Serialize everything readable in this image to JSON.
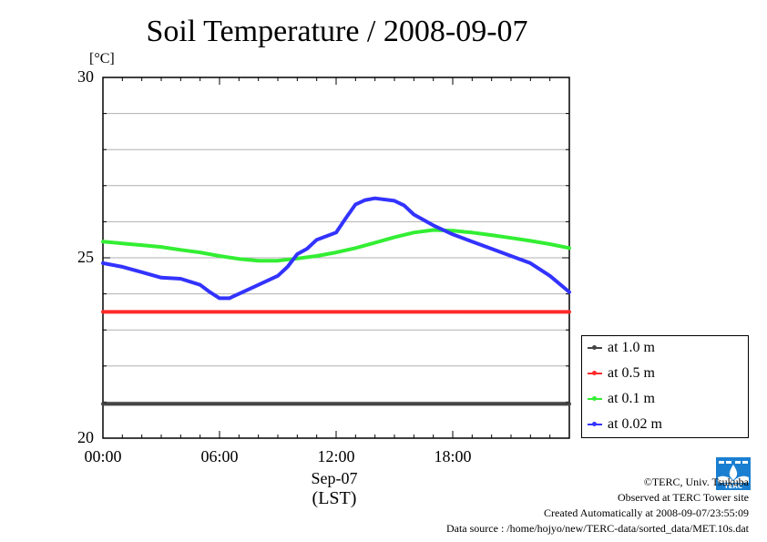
{
  "chart_data": {
    "type": "line",
    "title": "Soil Temperature / 2008-09-07",
    "ylabel": "[°C]",
    "ylim": [
      20,
      30
    ],
    "yticks": [
      "30",
      "25",
      "20"
    ],
    "x_ticks": [
      "00:00",
      "06:00",
      "12:00",
      "18:00"
    ],
    "x_date": "Sep-07",
    "x_zone": "(LST)",
    "xlim_hours": [
      0,
      24
    ],
    "legend_position": "right-bottom",
    "grid": "horizontal",
    "series": [
      {
        "name": "at 1.0 m",
        "color": "#444444",
        "x": [
          0,
          24
        ],
        "y": [
          20.95,
          20.95
        ]
      },
      {
        "name": "at 0.5 m",
        "color": "#ff2a2a",
        "x": [
          0,
          24
        ],
        "y": [
          23.5,
          23.5
        ]
      },
      {
        "name": "at 0.1 m",
        "color": "#33ee33",
        "x": [
          0,
          1,
          2,
          3,
          4,
          5,
          6,
          7,
          8,
          9,
          10,
          11,
          12,
          13,
          14,
          15,
          16,
          17,
          18,
          19,
          20,
          21,
          22,
          23,
          24
        ],
        "y": [
          25.45,
          25.4,
          25.35,
          25.3,
          25.22,
          25.15,
          25.05,
          24.97,
          24.92,
          24.92,
          24.98,
          25.05,
          25.15,
          25.27,
          25.42,
          25.57,
          25.7,
          25.77,
          25.75,
          25.7,
          25.63,
          25.55,
          25.47,
          25.38,
          25.27
        ]
      },
      {
        "name": "at 0.02 m",
        "color": "#3333ff",
        "x": [
          0,
          1,
          2,
          3,
          4,
          5,
          5.5,
          6,
          6.5,
          7,
          8,
          9,
          9.5,
          10,
          10.5,
          11,
          12,
          12.5,
          13,
          13.5,
          14,
          15,
          15.5,
          16,
          17,
          18,
          19,
          20,
          21,
          22,
          23,
          24
        ],
        "y": [
          24.85,
          24.75,
          24.6,
          24.45,
          24.42,
          24.25,
          24.05,
          23.88,
          23.88,
          24.0,
          24.25,
          24.5,
          24.75,
          25.1,
          25.25,
          25.5,
          25.7,
          26.1,
          26.48,
          26.6,
          26.65,
          26.58,
          26.45,
          26.2,
          25.9,
          25.65,
          25.45,
          25.25,
          25.05,
          24.85,
          24.5,
          24.05
        ]
      }
    ]
  },
  "footer": {
    "copyright": "©TERC, Univ. Tsukuba",
    "site": "Observed at TERC Tower site",
    "created": "Created Automatically at 2008-09-07/23:55:09",
    "source": "Data source : /home/hojyo/new/TERC-data/sorted_data/MET.10s.dat"
  },
  "logo": {
    "text": "TERC",
    "color": "#1a7fd1"
  }
}
